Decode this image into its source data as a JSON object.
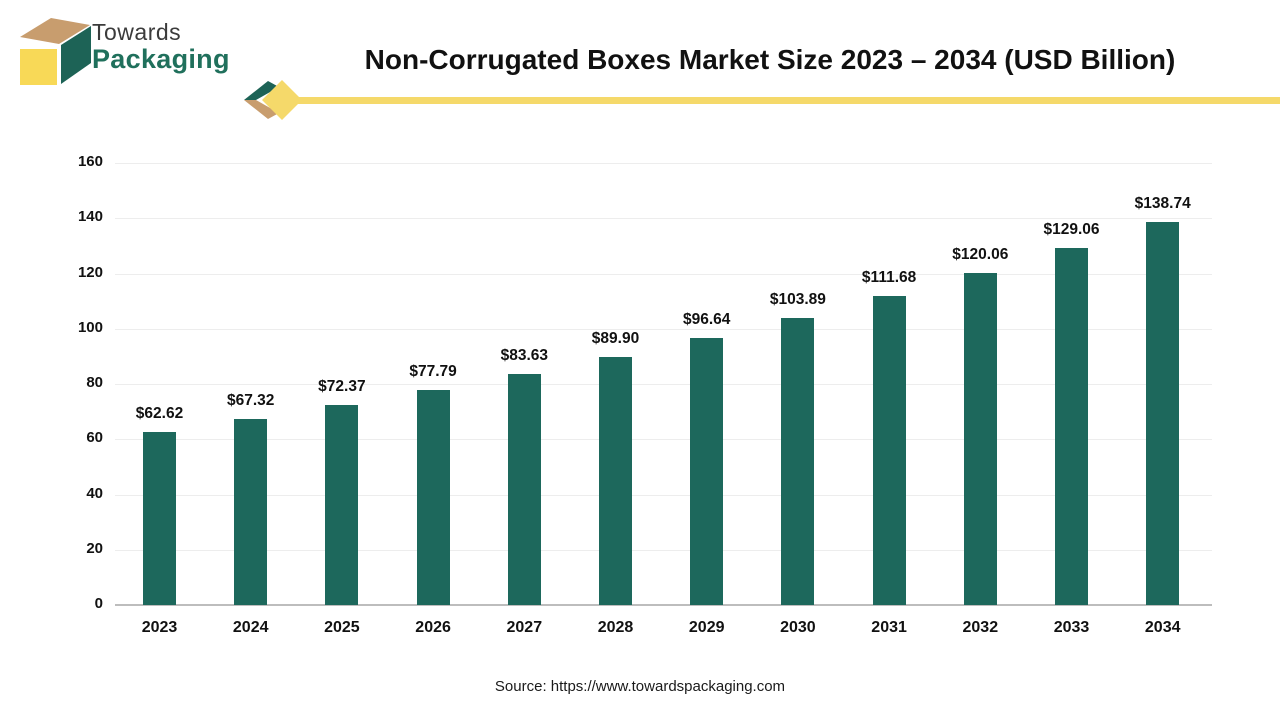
{
  "logo": {
    "line1": "Towards",
    "line2": "Packaging"
  },
  "header": {
    "title": "Non-Corrugated Boxes Market Size 2023 – 2034 (USD Billion)"
  },
  "source": {
    "text": "Source: https://www.towardspackaging.com"
  },
  "colors": {
    "bar": "#1d685c",
    "logo_green": "#1d6356",
    "logo_tan": "#c89d6e",
    "logo_yellow": "#f8d957",
    "rule_yellow": "#f5d96a",
    "gridline": "#ededed",
    "baseline": "#bdbdbd"
  },
  "chart_data": {
    "type": "bar",
    "title": "Non-Corrugated Boxes Market Size 2023 – 2034 (USD Billion)",
    "categories": [
      "2023",
      "2024",
      "2025",
      "2026",
      "2027",
      "2028",
      "2029",
      "2030",
      "2031",
      "2032",
      "2033",
      "2034"
    ],
    "values": [
      62.62,
      67.32,
      72.37,
      77.79,
      83.63,
      89.9,
      96.64,
      103.89,
      111.68,
      120.06,
      129.06,
      138.74
    ],
    "value_labels": [
      "$62.62",
      "$67.32",
      "$72.37",
      "$77.79",
      "$83.63",
      "$89.90",
      "$96.64",
      "$103.89",
      "$111.68",
      "$120.06",
      "$129.06",
      "$138.74"
    ],
    "xlabel": "",
    "ylabel": "",
    "ylim": [
      0,
      160
    ],
    "yticks": [
      0,
      20,
      40,
      60,
      80,
      100,
      120,
      140,
      160
    ],
    "grid": true,
    "legend": false,
    "bar_color": "#1d685c"
  }
}
